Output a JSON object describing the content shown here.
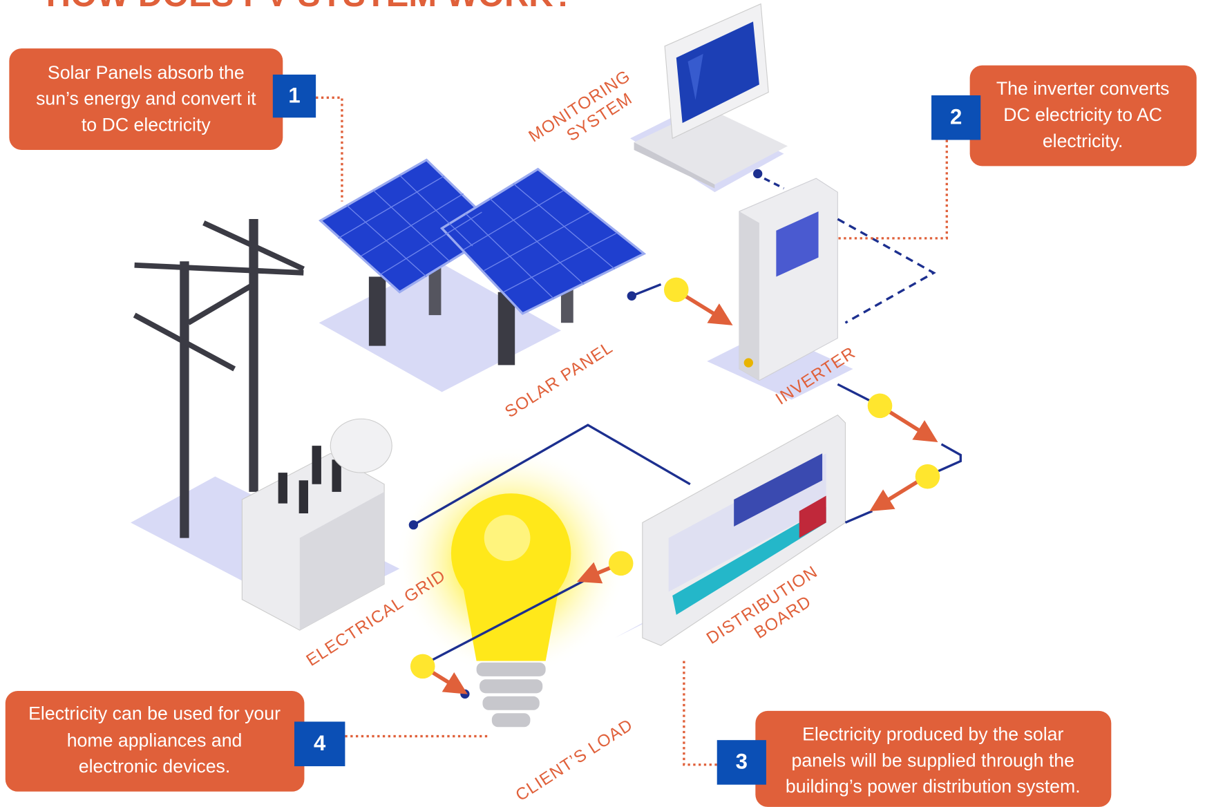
{
  "header": {
    "title": "HOW DOES PV SYSTEM WORK?"
  },
  "steps": [
    {
      "number": "1",
      "lines": [
        "Solar Panels absorb the",
        "sun’s energy and convert it",
        "to DC electricity"
      ]
    },
    {
      "number": "2",
      "lines": [
        "The inverter converts",
        "DC electricity to AC",
        "electricity."
      ]
    },
    {
      "number": "3",
      "lines": [
        "Electricity produced by the solar",
        "panels will be supplied through the",
        "building’s power distribution system."
      ]
    },
    {
      "number": "4",
      "lines": [
        "Electricity can be used for your",
        "home appliances and",
        "electronic devices."
      ]
    }
  ],
  "components": [
    {
      "lines": [
        "MONITORING",
        "SYSTEM"
      ]
    },
    {
      "lines": [
        "SOLAR PANEL"
      ]
    },
    {
      "lines": [
        "INVERTER"
      ]
    },
    {
      "lines": [
        "ELECTRICAL GRID"
      ]
    },
    {
      "lines": [
        "DISTRIBUTION",
        "BOARD"
      ]
    },
    {
      "lines": [
        "CLIENT’S LOAD"
      ]
    }
  ]
}
